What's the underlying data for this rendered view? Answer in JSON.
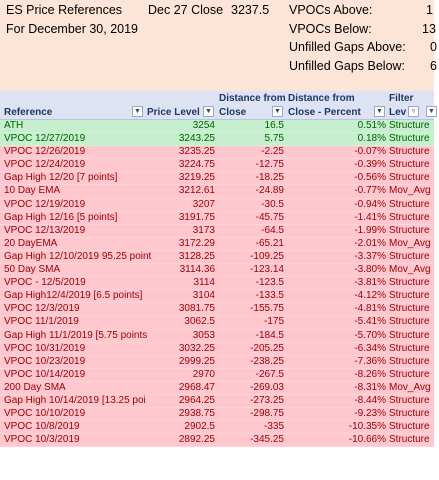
{
  "title": {
    "line1": "ES Price References",
    "line2": "For December 30, 2019"
  },
  "close_info": {
    "label": "Dec 27 Close",
    "value": "3237.5"
  },
  "summary": [
    {
      "label": "VPOCs Above:",
      "value": "1"
    },
    {
      "label": "VPOCs Below:",
      "value": "13"
    },
    {
      "label": "Unfilled Gaps Above:",
      "value": "0"
    },
    {
      "label": "Unfilled Gaps Below:",
      "value": "6"
    }
  ],
  "columns": {
    "reference": "Reference",
    "price_level": "Price Level",
    "distance_from_line1": "Distance from",
    "distance_from_line2": "Close",
    "distance_pct_line1": "Distance from",
    "distance_pct_line2": "Close - Percent",
    "filter_line1": "Filter",
    "filter_line2": "Lev"
  },
  "icons": {
    "dropdown": "dropdown-arrow-icon",
    "filter": "filter-funnel-icon"
  },
  "colors": {
    "green_fill": "#c6efce",
    "green_text": "#006100",
    "red_fill": "#ffc7ce",
    "red_text": "#9c0006",
    "header_fill": "#fce4d6"
  },
  "rows": [
    {
      "ref": "ATH",
      "price": "3254",
      "dist": "16.5",
      "pct": "0.51%",
      "filter": "Structure",
      "tone": "green"
    },
    {
      "ref": "VPOC 12/27/2019",
      "price": "3243.25",
      "dist": "5.75",
      "pct": "0.18%",
      "filter": "Structure",
      "tone": "green"
    },
    {
      "ref": "VPOC 12/26/2019",
      "price": "3235.25",
      "dist": "-2.25",
      "pct": "-0.07%",
      "filter": "Structure",
      "tone": "red"
    },
    {
      "ref": "VPOC 12/24/2019",
      "price": "3224.75",
      "dist": "-12.75",
      "pct": "-0.39%",
      "filter": "Structure",
      "tone": "red"
    },
    {
      "ref": "Gap High 12/20 [7 points]",
      "price": "3219.25",
      "dist": "-18.25",
      "pct": "-0.56%",
      "filter": "Structure",
      "tone": "red"
    },
    {
      "ref": "10 Day EMA",
      "price": "3212.61",
      "dist": "-24.89",
      "pct": "-0.77%",
      "filter": "Mov_Avg",
      "tone": "red"
    },
    {
      "ref": "VPOC 12/19/2019",
      "price": "3207",
      "dist": "-30.5",
      "pct": "-0.94%",
      "filter": "Structure",
      "tone": "red"
    },
    {
      "ref": "Gap High 12/16 [5 points]",
      "price": "3191.75",
      "dist": "-45.75",
      "pct": "-1.41%",
      "filter": "Structure",
      "tone": "red"
    },
    {
      "ref": "VPOC 12/13/2019",
      "price": "3173",
      "dist": "-64.5",
      "pct": "-1.99%",
      "filter": "Structure",
      "tone": "red"
    },
    {
      "ref": "20 DayEMA",
      "price": "3172.29",
      "dist": "-65.21",
      "pct": "-2.01%",
      "filter": "Mov_Avg",
      "tone": "red"
    },
    {
      "ref": "Gap High 12/10/2019 95.25 point",
      "price": "3128.25",
      "dist": "-109.25",
      "pct": "-3.37%",
      "filter": "Structure",
      "tone": "red"
    },
    {
      "ref": "50 Day SMA",
      "price": "3114.36",
      "dist": "-123.14",
      "pct": "-3.80%",
      "filter": "Mov_Avg",
      "tone": "red"
    },
    {
      "ref": "VPOC - 12/5/2019",
      "price": "3114",
      "dist": "-123.5",
      "pct": "-3.81%",
      "filter": "Structure",
      "tone": "red"
    },
    {
      "ref": "Gap High12/4/2019 [6.5 points]",
      "price": "3104",
      "dist": "-133.5",
      "pct": "-4.12%",
      "filter": "Structure",
      "tone": "red"
    },
    {
      "ref": "VPOC 12/3/2019",
      "price": "3081.75",
      "dist": "-155.75",
      "pct": "-4.81%",
      "filter": "Structure",
      "tone": "red"
    },
    {
      "ref": "VPOC 11/1/2019",
      "price": "3062.5",
      "dist": "-175",
      "pct": "-5.41%",
      "filter": "Structure",
      "tone": "red"
    },
    {
      "ref": "Gap High 11/1/2019 [5.75 points",
      "price": "3053",
      "dist": "-184.5",
      "pct": "-5.70%",
      "filter": "Structure",
      "tone": "red"
    },
    {
      "ref": "VPOC 10/31/2019",
      "price": "3032.25",
      "dist": "-205.25",
      "pct": "-6.34%",
      "filter": "Structure",
      "tone": "red"
    },
    {
      "ref": "VPOC 10/23/2019",
      "price": "2999.25",
      "dist": "-238.25",
      "pct": "-7.36%",
      "filter": "Structure",
      "tone": "red"
    },
    {
      "ref": "VPOC 10/14/2019",
      "price": "2970",
      "dist": "-267.5",
      "pct": "-8.26%",
      "filter": "Structure",
      "tone": "red"
    },
    {
      "ref": "200 Day SMA",
      "price": "2968.47",
      "dist": "-269.03",
      "pct": "-8.31%",
      "filter": "Mov_Avg",
      "tone": "red"
    },
    {
      "ref": "Gap High  10/14/2019 [13.25 poi",
      "price": "2964.25",
      "dist": "-273.25",
      "pct": "-8.44%",
      "filter": "Structure",
      "tone": "red"
    },
    {
      "ref": "VPOC 10/10/2019",
      "price": "2938.75",
      "dist": "-298.75",
      "pct": "-9.23%",
      "filter": "Structure",
      "tone": "red"
    },
    {
      "ref": "VPOC 10/8/2019",
      "price": "2902.5",
      "dist": "-335",
      "pct": "-10.35%",
      "filter": "Structure",
      "tone": "red"
    },
    {
      "ref": "VPOC 10/3/2019",
      "price": "2892.25",
      "dist": "-345.25",
      "pct": "-10.66%",
      "filter": "Structure",
      "tone": "red"
    }
  ]
}
